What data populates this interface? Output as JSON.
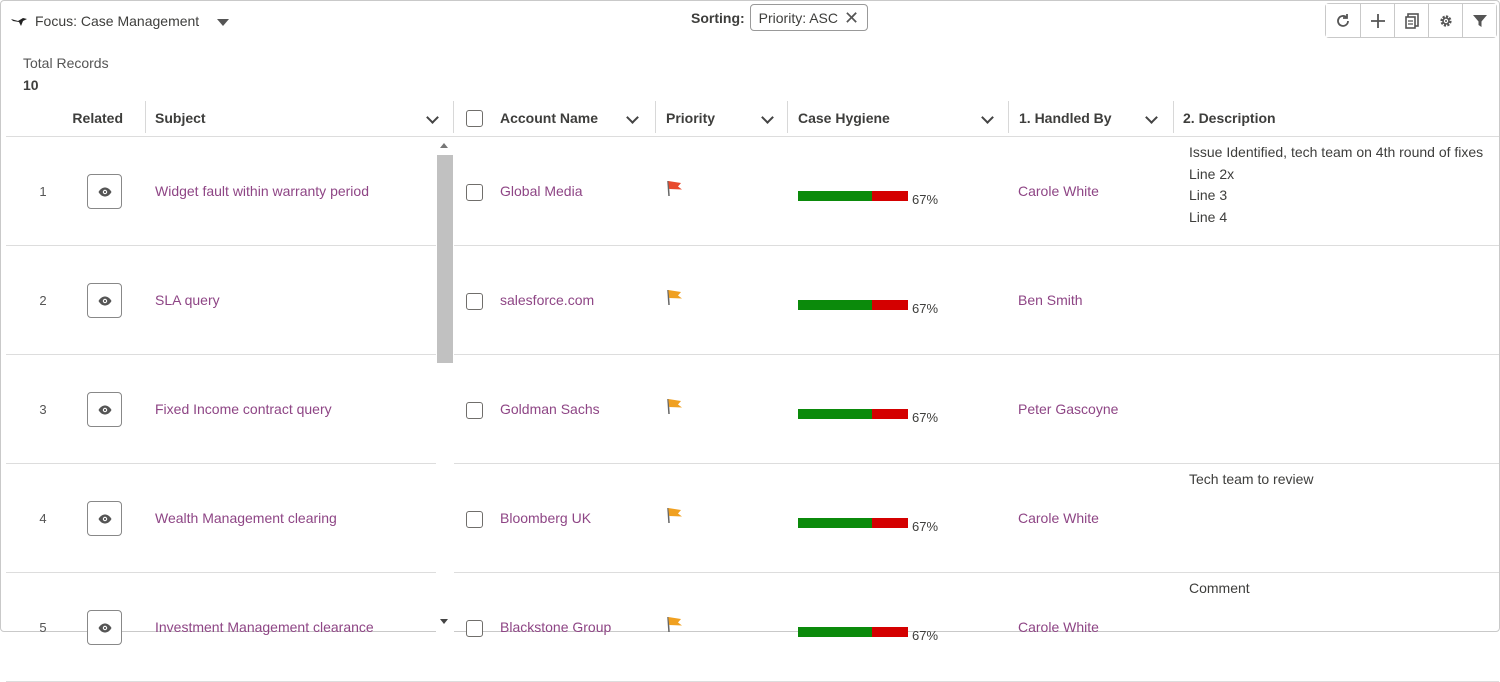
{
  "focus": {
    "label": "Focus: Case Management"
  },
  "sorting": {
    "label": "Sorting:",
    "pill": "Priority: ASC"
  },
  "toolbar": {
    "icons": [
      "refresh-icon",
      "plus-icon",
      "copy-icon",
      "settings-icon",
      "filter-icon"
    ]
  },
  "totals": {
    "label": "Total Records",
    "count": "10"
  },
  "columns": {
    "related": "Related",
    "subject": "Subject",
    "account": "Account Name",
    "priority": "Priority",
    "hygiene": "Case Hygiene",
    "handled": "1. Handled By",
    "description": "2. Description"
  },
  "colors": {
    "link": "#8e4585",
    "flag_high": "#e8492c",
    "flag_medium": "#f0a020",
    "hygiene_good": "#0b8a0b",
    "hygiene_bad": "#d40000"
  },
  "rows": [
    {
      "num": "1",
      "subject": "Widget fault within warranty period",
      "account": "Global Media",
      "priority": "high",
      "hygiene": 0.67,
      "hygiene_label": "67%",
      "handled": "Carole White",
      "description": [
        "Issue Identified, tech team on 4th round of fixes",
        "Line 2x",
        "Line 3",
        "Line 4"
      ]
    },
    {
      "num": "2",
      "subject": "SLA query",
      "account": "salesforce.com",
      "priority": "medium",
      "hygiene": 0.67,
      "hygiene_label": "67%",
      "handled": "Ben Smith",
      "description": []
    },
    {
      "num": "3",
      "subject": "Fixed Income contract query",
      "account": "Goldman Sachs",
      "priority": "medium",
      "hygiene": 0.67,
      "hygiene_label": "67%",
      "handled": "Peter Gascoyne",
      "description": []
    },
    {
      "num": "4",
      "subject": "Wealth Management clearing",
      "account": "Bloomberg UK",
      "priority": "medium",
      "hygiene": 0.67,
      "hygiene_label": "67%",
      "handled": "Carole White",
      "description": [
        "Tech team to review"
      ]
    },
    {
      "num": "5",
      "subject": "Investment Management clearance",
      "account": "Blackstone Group",
      "priority": "medium",
      "hygiene": 0.67,
      "hygiene_label": "67%",
      "handled": "Carole White",
      "description": [
        "Comment"
      ]
    }
  ]
}
